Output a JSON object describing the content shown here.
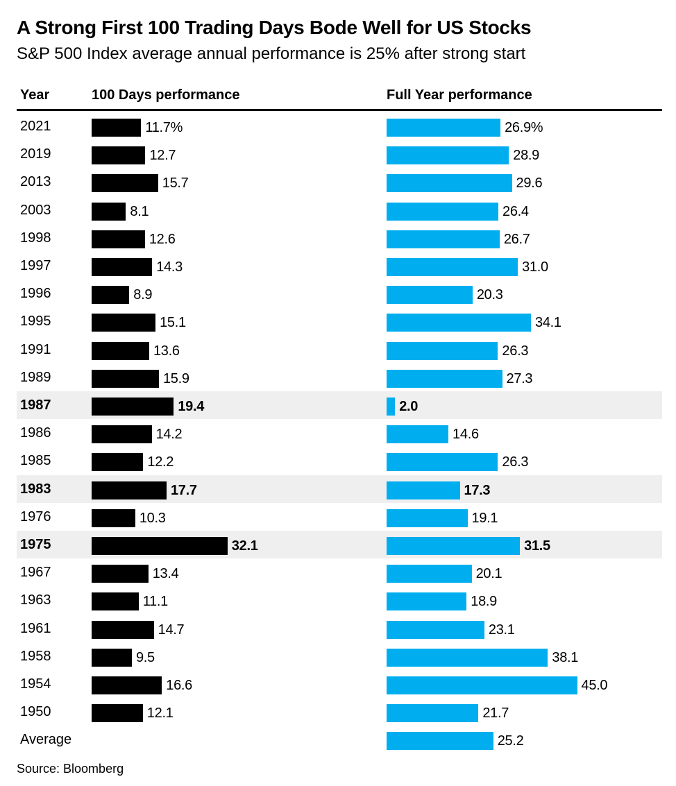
{
  "chart_data": {
    "type": "bar",
    "title": "A Strong First 100 Trading Days Bode Well for US Stocks",
    "subtitle": "S&P 500 Index average annual performance is 25% after strong start",
    "columns": {
      "year": "Year",
      "days100": "100 Days performance",
      "fullyear": "Full Year performance"
    },
    "unit_suffix": "%",
    "colors": {
      "days100": "#000000",
      "fullyear": "#00aeef",
      "highlight_row": "#efefef"
    },
    "rows": [
      {
        "year": "2021",
        "days100": 11.7,
        "fullyear": 26.9,
        "days100_label": "11.7%",
        "fullyear_label": "26.9%",
        "highlight": false
      },
      {
        "year": "2019",
        "days100": 12.7,
        "fullyear": 28.9,
        "days100_label": "12.7",
        "fullyear_label": "28.9",
        "highlight": false
      },
      {
        "year": "2013",
        "days100": 15.7,
        "fullyear": 29.6,
        "days100_label": "15.7",
        "fullyear_label": "29.6",
        "highlight": false
      },
      {
        "year": "2003",
        "days100": 8.1,
        "fullyear": 26.4,
        "days100_label": "8.1",
        "fullyear_label": "26.4",
        "highlight": false
      },
      {
        "year": "1998",
        "days100": 12.6,
        "fullyear": 26.7,
        "days100_label": "12.6",
        "fullyear_label": "26.7",
        "highlight": false
      },
      {
        "year": "1997",
        "days100": 14.3,
        "fullyear": 31.0,
        "days100_label": "14.3",
        "fullyear_label": "31.0",
        "highlight": false
      },
      {
        "year": "1996",
        "days100": 8.9,
        "fullyear": 20.3,
        "days100_label": "8.9",
        "fullyear_label": "20.3",
        "highlight": false
      },
      {
        "year": "1995",
        "days100": 15.1,
        "fullyear": 34.1,
        "days100_label": "15.1",
        "fullyear_label": "34.1",
        "highlight": false
      },
      {
        "year": "1991",
        "days100": 13.6,
        "fullyear": 26.3,
        "days100_label": "13.6",
        "fullyear_label": "26.3",
        "highlight": false
      },
      {
        "year": "1989",
        "days100": 15.9,
        "fullyear": 27.3,
        "days100_label": "15.9",
        "fullyear_label": "27.3",
        "highlight": false
      },
      {
        "year": "1987",
        "days100": 19.4,
        "fullyear": 2.0,
        "days100_label": "19.4",
        "fullyear_label": "2.0",
        "highlight": true
      },
      {
        "year": "1986",
        "days100": 14.2,
        "fullyear": 14.6,
        "days100_label": "14.2",
        "fullyear_label": "14.6",
        "highlight": false
      },
      {
        "year": "1985",
        "days100": 12.2,
        "fullyear": 26.3,
        "days100_label": "12.2",
        "fullyear_label": "26.3",
        "highlight": false
      },
      {
        "year": "1983",
        "days100": 17.7,
        "fullyear": 17.3,
        "days100_label": "17.7",
        "fullyear_label": "17.3",
        "highlight": true
      },
      {
        "year": "1976",
        "days100": 10.3,
        "fullyear": 19.1,
        "days100_label": "10.3",
        "fullyear_label": "19.1",
        "highlight": false
      },
      {
        "year": "1975",
        "days100": 32.1,
        "fullyear": 31.5,
        "days100_label": "32.1",
        "fullyear_label": "31.5",
        "highlight": true
      },
      {
        "year": "1967",
        "days100": 13.4,
        "fullyear": 20.1,
        "days100_label": "13.4",
        "fullyear_label": "20.1",
        "highlight": false
      },
      {
        "year": "1963",
        "days100": 11.1,
        "fullyear": 18.9,
        "days100_label": "11.1",
        "fullyear_label": "18.9",
        "highlight": false
      },
      {
        "year": "1961",
        "days100": 14.7,
        "fullyear": 23.1,
        "days100_label": "14.7",
        "fullyear_label": "23.1",
        "highlight": false
      },
      {
        "year": "1958",
        "days100": 9.5,
        "fullyear": 38.1,
        "days100_label": "9.5",
        "fullyear_label": "38.1",
        "highlight": false
      },
      {
        "year": "1954",
        "days100": 16.6,
        "fullyear": 45.0,
        "days100_label": "16.6",
        "fullyear_label": "45.0",
        "highlight": false
      },
      {
        "year": "1950",
        "days100": 12.1,
        "fullyear": 21.7,
        "days100_label": "12.1",
        "fullyear_label": "21.7",
        "highlight": false
      },
      {
        "year": "Average",
        "days100": null,
        "fullyear": 25.2,
        "days100_label": "",
        "fullyear_label": "25.2",
        "highlight": false
      }
    ]
  },
  "source": "Source: Bloomberg"
}
